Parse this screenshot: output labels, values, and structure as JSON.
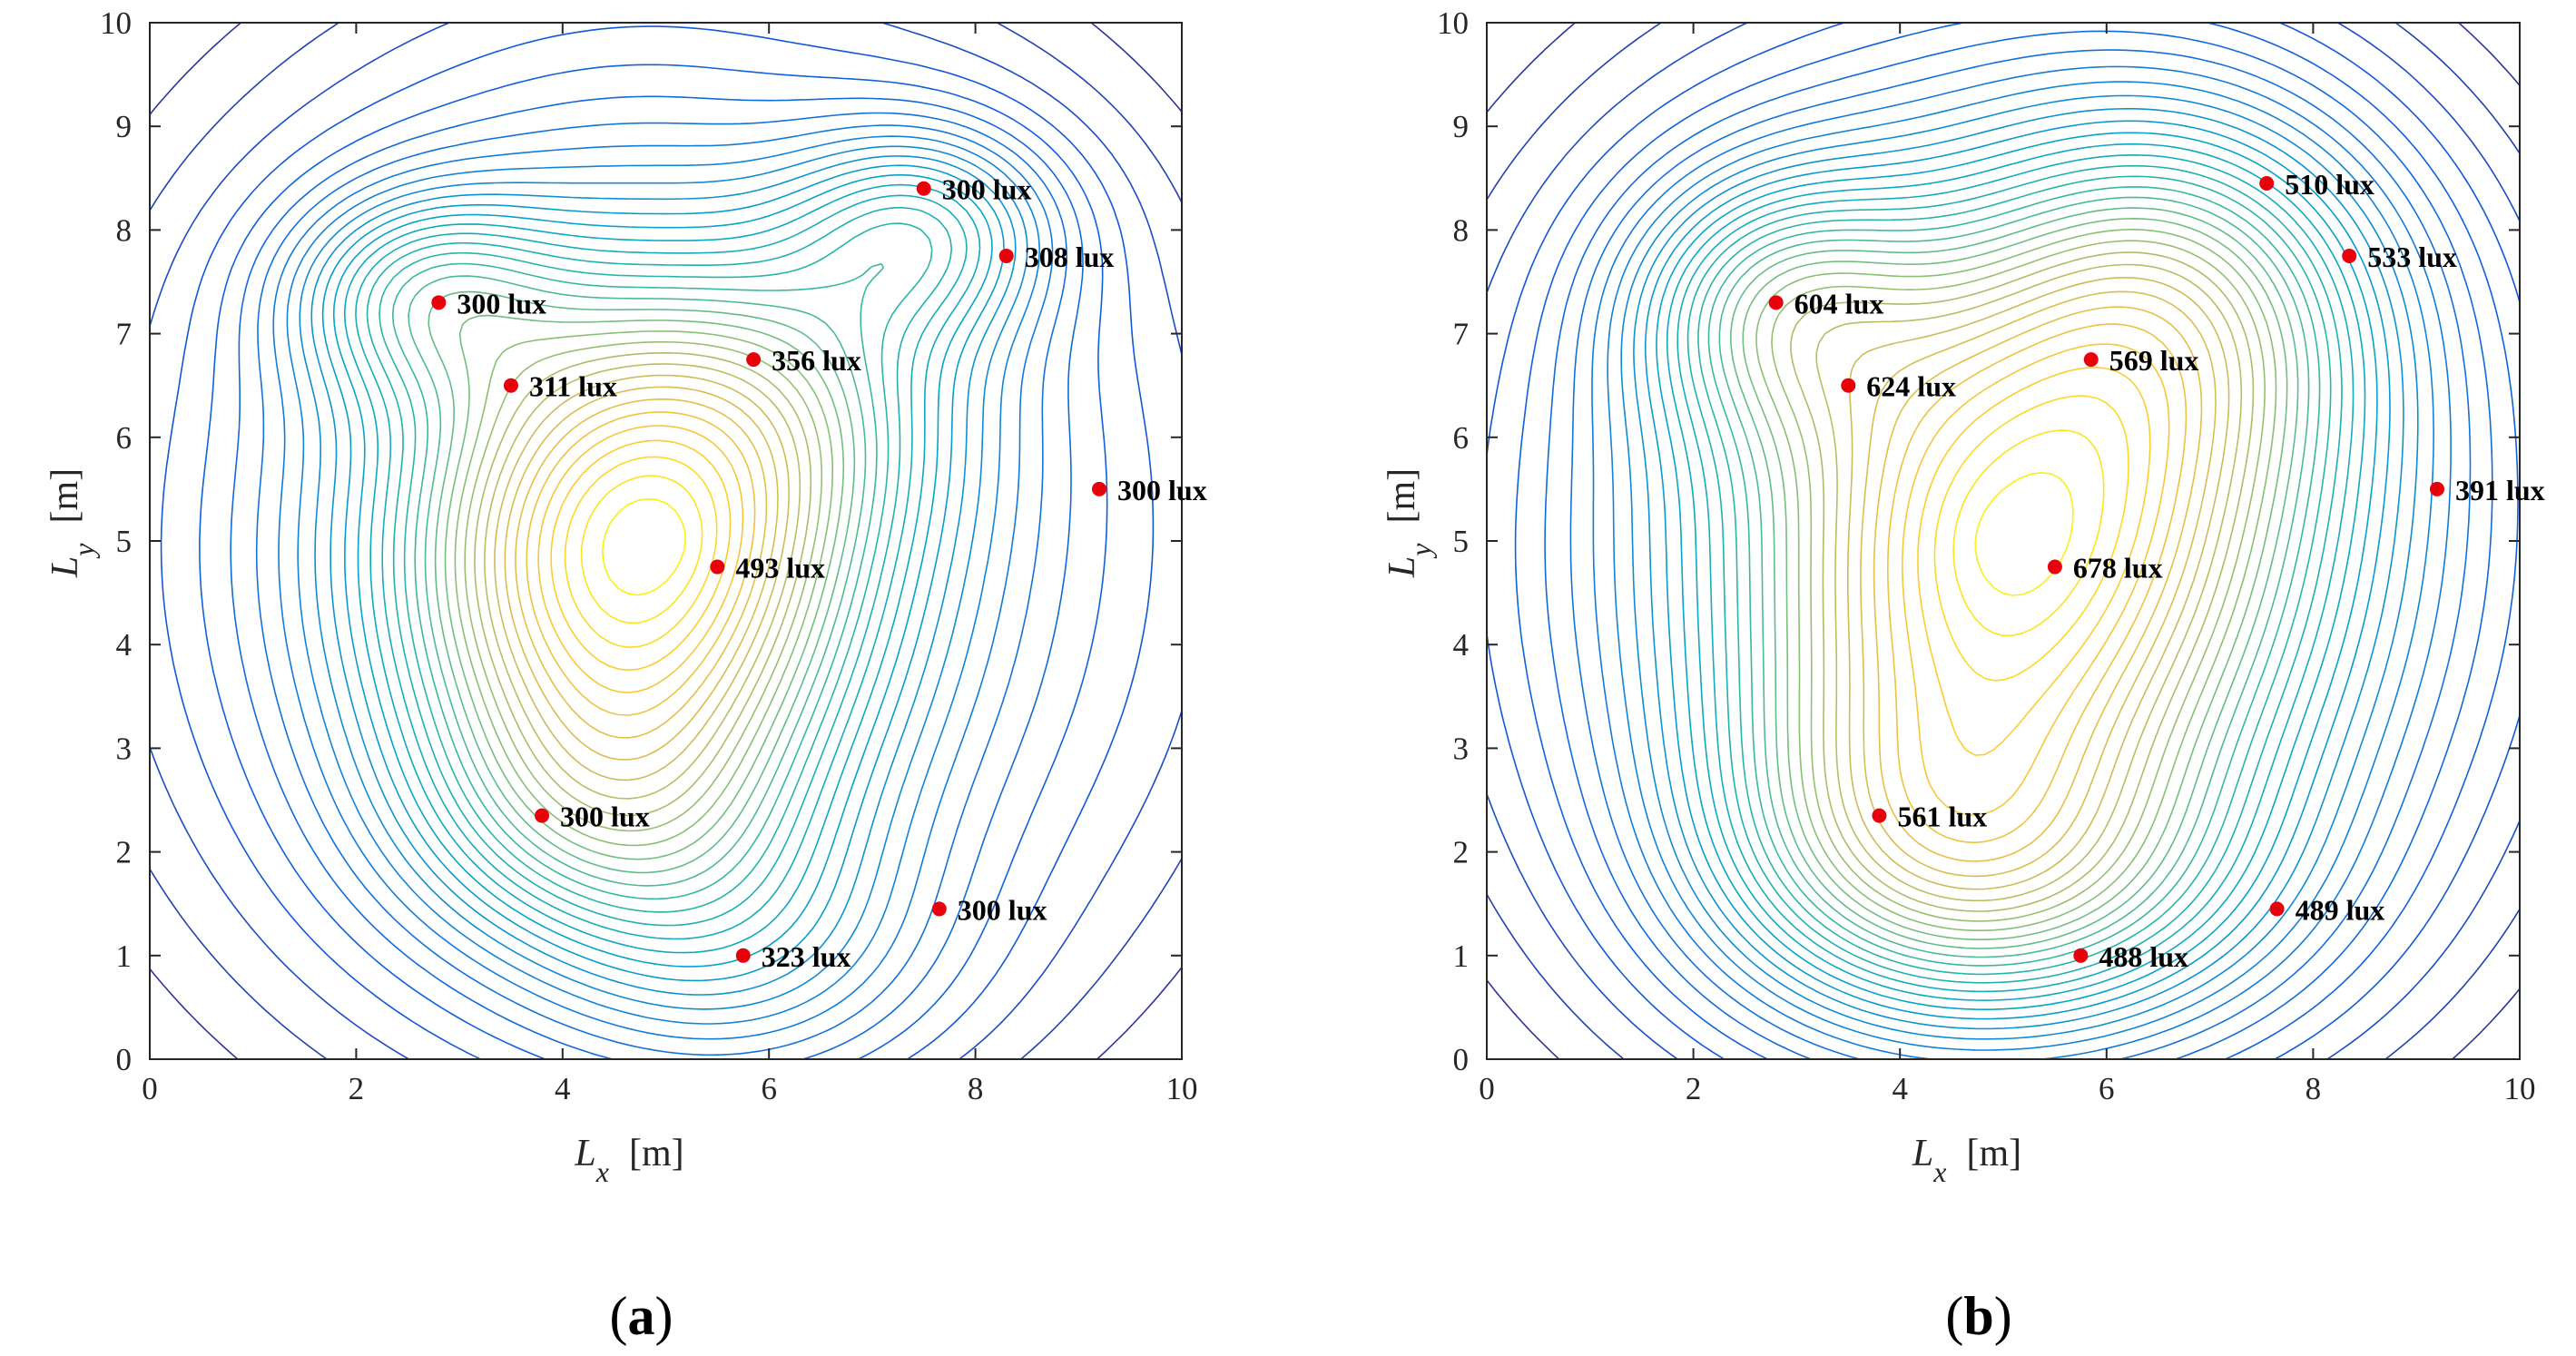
{
  "chart_data": [
    {
      "type": "contour",
      "panel_label": "a",
      "xlabel": {
        "symbol": "L",
        "subscript": "x",
        "unit": "[m]"
      },
      "ylabel": {
        "symbol": "L",
        "subscript": "y",
        "unit": "[m]"
      },
      "xlim": [
        0,
        10
      ],
      "ylim": [
        0,
        10
      ],
      "xticks": [
        "0",
        "2",
        "4",
        "6",
        "8",
        "10"
      ],
      "yticks": [
        "0",
        "1",
        "2",
        "3",
        "4",
        "5",
        "6",
        "7",
        "8",
        "9",
        "10"
      ],
      "colormap": [
        "#352a87",
        "#0f5cdd",
        "#1481d6",
        "#06a4ca",
        "#2eb7a4",
        "#87bf77",
        "#d1bb59",
        "#fec832",
        "#f9fb0e"
      ],
      "marker_color": "#e8000b",
      "points": [
        {
          "x": 7.5,
          "y": 8.4,
          "label": "300 lux"
        },
        {
          "x": 8.3,
          "y": 7.75,
          "label": "308 lux"
        },
        {
          "x": 2.8,
          "y": 7.3,
          "label": "300 lux"
        },
        {
          "x": 5.85,
          "y": 6.75,
          "label": "356 lux"
        },
        {
          "x": 3.5,
          "y": 6.5,
          "label": "311 lux"
        },
        {
          "x": 9.2,
          "y": 5.5,
          "label": "300 lux"
        },
        {
          "x": 5.5,
          "y": 4.75,
          "label": "493 lux"
        },
        {
          "x": 3.8,
          "y": 2.35,
          "label": "300 lux"
        },
        {
          "x": 7.65,
          "y": 1.45,
          "label": "300 lux"
        },
        {
          "x": 5.75,
          "y": 1.0,
          "label": "323 lux"
        }
      ]
    },
    {
      "type": "contour",
      "panel_label": "b",
      "xlabel": {
        "symbol": "L",
        "subscript": "x",
        "unit": "[m]"
      },
      "ylabel": {
        "symbol": "L",
        "subscript": "y",
        "unit": "[m]"
      },
      "xlim": [
        0,
        10
      ],
      "ylim": [
        0,
        10
      ],
      "xticks": [
        "0",
        "2",
        "4",
        "6",
        "8",
        "10"
      ],
      "yticks": [
        "0",
        "1",
        "2",
        "3",
        "4",
        "5",
        "6",
        "7",
        "8",
        "9",
        "10"
      ],
      "colormap": [
        "#352a87",
        "#0f5cdd",
        "#1481d6",
        "#06a4ca",
        "#2eb7a4",
        "#87bf77",
        "#d1bb59",
        "#fec832",
        "#f9fb0e"
      ],
      "marker_color": "#e8000b",
      "points": [
        {
          "x": 7.55,
          "y": 8.45,
          "label": "510 lux"
        },
        {
          "x": 8.35,
          "y": 7.75,
          "label": "533 lux"
        },
        {
          "x": 2.8,
          "y": 7.3,
          "label": "604 lux"
        },
        {
          "x": 5.85,
          "y": 6.75,
          "label": "569 lux"
        },
        {
          "x": 3.5,
          "y": 6.5,
          "label": "624 lux"
        },
        {
          "x": 9.2,
          "y": 5.5,
          "label": "391 lux"
        },
        {
          "x": 5.5,
          "y": 4.75,
          "label": "678 lux"
        },
        {
          "x": 3.8,
          "y": 2.35,
          "label": "561 lux"
        },
        {
          "x": 7.65,
          "y": 1.45,
          "label": "489 lux"
        },
        {
          "x": 5.75,
          "y": 1.0,
          "label": "488 lux"
        }
      ]
    }
  ]
}
